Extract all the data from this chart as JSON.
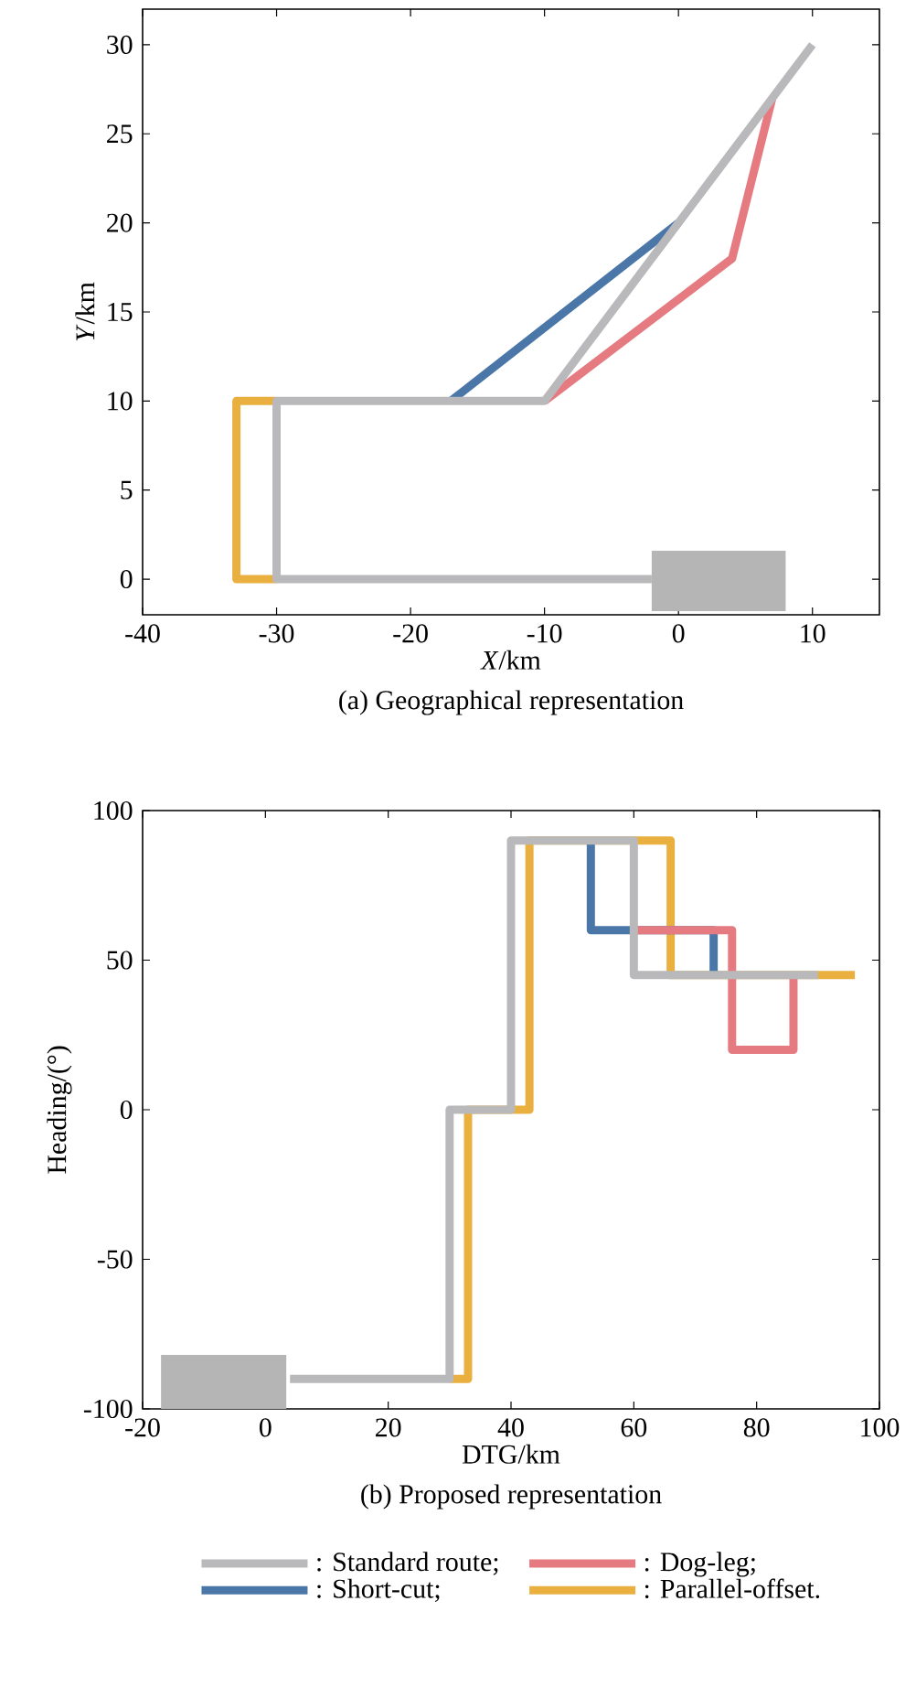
{
  "chart_data": [
    {
      "type": "line",
      "title": "(a) Geographical representation",
      "xlabel": "*X*/km",
      "ylabel": "*Y*/km",
      "xlim": [
        -40,
        15
      ],
      "ylim": [
        -2,
        32
      ],
      "xticks": [
        -40,
        -30,
        -20,
        -10,
        0,
        10
      ],
      "yticks": [
        0,
        5,
        10,
        15,
        20,
        25,
        30
      ],
      "grid": false,
      "series": [
        {
          "color": "#b9b9bb",
          "x": [
            -2,
            -30,
            -30,
            -10,
            10
          ],
          "values": [
            0,
            0,
            10,
            10,
            30
          ]
        },
        {
          "color": "#e57a80",
          "x": [
            -10,
            4,
            7
          ],
          "values": [
            10,
            18,
            27
          ]
        },
        {
          "color": "#4a76a8",
          "x": [
            -17,
            0
          ],
          "values": [
            10,
            20
          ]
        },
        {
          "color": "#e9b040",
          "x": [
            -30,
            -33,
            -33,
            -30
          ],
          "values": [
            0,
            0,
            10,
            10
          ]
        }
      ]
    },
    {
      "type": "line",
      "title": "(b) Proposed representation",
      "xlabel": "DTG/km",
      "ylabel": "Heading/(°)",
      "xlim": [
        -20,
        100
      ],
      "ylim": [
        -100,
        100
      ],
      "xticks": [
        -20,
        0,
        20,
        40,
        60,
        80,
        100
      ],
      "yticks": [
        -100,
        -50,
        0,
        50,
        100
      ],
      "grid": false,
      "legend": "bottom",
      "series": [
        {
          "name": ": Standard route;",
          "color": "#b9b9bb",
          "x": [
            4,
            30,
            30,
            40,
            40,
            60,
            60,
            90
          ],
          "values": [
            -90,
            -90,
            0,
            0,
            90,
            90,
            45,
            45
          ]
        },
        {
          "name": ": Dog-leg;",
          "color": "#e57a80",
          "x": [
            60,
            76,
            76,
            86,
            86
          ],
          "values": [
            60,
            60,
            20,
            20,
            45
          ]
        },
        {
          "name": ": Short-cut;",
          "color": "#4a76a8",
          "x": [
            53,
            53,
            73,
            73
          ],
          "values": [
            90,
            60,
            60,
            45
          ]
        },
        {
          "name": ": Parallel-offset.",
          "color": "#e9b040",
          "x": [
            30,
            33,
            33,
            43,
            43,
            66,
            66,
            96
          ],
          "values": [
            -90,
            -90,
            0,
            0,
            90,
            90,
            45,
            45
          ]
        }
      ]
    }
  ]
}
